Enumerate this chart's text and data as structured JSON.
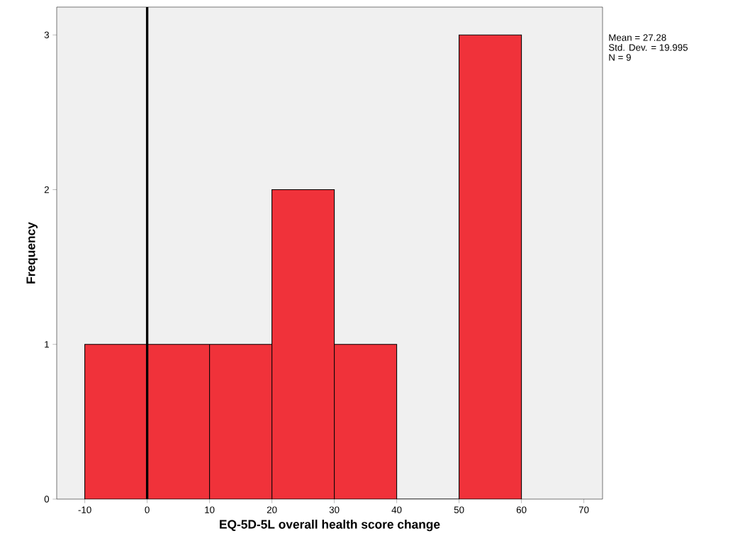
{
  "chart_data": {
    "type": "histogram",
    "xlabel": "EQ-5D-5L overall health score change",
    "ylabel": "Frequency",
    "bins": [
      -10,
      0,
      10,
      20,
      30,
      40,
      50,
      60
    ],
    "values": [
      1,
      1,
      1,
      2,
      1,
      0,
      3
    ],
    "color": "#f0323a",
    "xlim": [
      -14.5,
      73
    ],
    "ylim": [
      0,
      3.18
    ],
    "xticks": [
      -10,
      0,
      10,
      20,
      30,
      40,
      50,
      60,
      70
    ],
    "yticks": [
      0,
      1,
      2,
      3
    ],
    "grid": false,
    "ref_lines": [
      {
        "axis": "x",
        "value": 0,
        "color": "#000000"
      }
    ],
    "annotations": [
      "Mean = 27.28",
      "Std. Dev. = 19.995",
      "N = 9"
    ]
  }
}
